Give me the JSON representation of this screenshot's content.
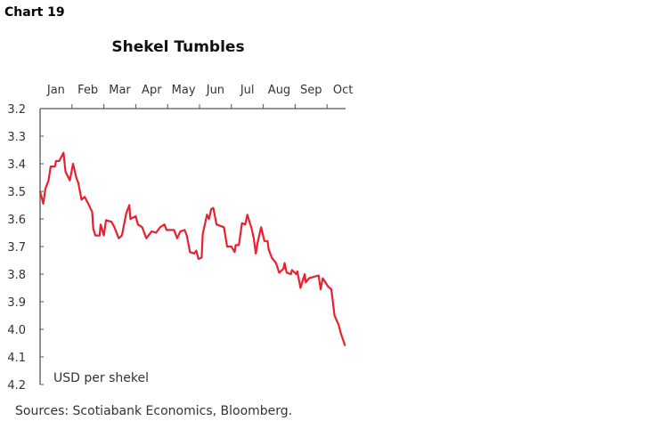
{
  "chart_label": "Chart 19",
  "chart_data": {
    "type": "line",
    "title": "Shekel Tumbles",
    "ylabel": "USD per shekel",
    "source": "Sources: Scotiabank Economics, Bloomberg.",
    "y_inverted": true,
    "ylim": [
      3.2,
      4.2
    ],
    "yticks": [
      "3.2",
      "3.3",
      "3.4",
      "3.5",
      "3.6",
      "3.7",
      "3.8",
      "3.9",
      "4.0",
      "4.1",
      "4.2"
    ],
    "xticks": [
      "Jan",
      "Feb",
      "Mar",
      "Apr",
      "May",
      "Jun",
      "Jul",
      "Aug",
      "Sep",
      "Oct"
    ],
    "xaxis_position": "top",
    "grid": false,
    "color": "#e8202f",
    "series": [
      {
        "points": [
          [
            "01-01",
            3.5
          ],
          [
            "01-04",
            3.545
          ],
          [
            "01-06",
            3.49
          ],
          [
            "01-09",
            3.46
          ],
          [
            "01-11",
            3.41
          ],
          [
            "01-15",
            3.41
          ],
          [
            "01-16",
            3.39
          ],
          [
            "01-19",
            3.39
          ],
          [
            "01-23",
            3.36
          ],
          [
            "01-25",
            3.43
          ],
          [
            "01-29",
            3.46
          ],
          [
            "02-02",
            3.4
          ],
          [
            "02-05",
            3.45
          ],
          [
            "02-07",
            3.47
          ],
          [
            "02-10",
            3.53
          ],
          [
            "02-13",
            3.52
          ],
          [
            "02-17",
            3.55
          ],
          [
            "02-20",
            3.575
          ],
          [
            "02-21",
            3.635
          ],
          [
            "02-23",
            3.66
          ],
          [
            "02-27",
            3.66
          ],
          [
            "02-28",
            3.62
          ],
          [
            "03-01",
            3.66
          ],
          [
            "03-03",
            3.605
          ],
          [
            "03-08",
            3.61
          ],
          [
            "03-11",
            3.63
          ],
          [
            "03-15",
            3.67
          ],
          [
            "03-18",
            3.66
          ],
          [
            "03-22",
            3.58
          ],
          [
            "03-25",
            3.55
          ],
          [
            "03-26",
            3.6
          ],
          [
            "03-31",
            3.59
          ],
          [
            "04-03",
            3.62
          ],
          [
            "04-07",
            3.63
          ],
          [
            "04-11",
            3.67
          ],
          [
            "04-16",
            3.645
          ],
          [
            "04-20",
            3.65
          ],
          [
            "04-24",
            3.63
          ],
          [
            "04-28",
            3.62
          ],
          [
            "04-30",
            3.64
          ],
          [
            "05-07",
            3.64
          ],
          [
            "05-10",
            3.67
          ],
          [
            "05-13",
            3.645
          ],
          [
            "05-17",
            3.64
          ],
          [
            "05-19",
            3.66
          ],
          [
            "05-22",
            3.72
          ],
          [
            "05-26",
            3.725
          ],
          [
            "05-28",
            3.715
          ],
          [
            "05-30",
            3.745
          ],
          [
            "06-03",
            3.74
          ],
          [
            "06-04",
            3.655
          ],
          [
            "06-08",
            3.585
          ],
          [
            "06-10",
            3.6
          ],
          [
            "06-12",
            3.565
          ],
          [
            "06-14",
            3.56
          ],
          [
            "06-17",
            3.62
          ],
          [
            "06-24",
            3.63
          ],
          [
            "06-27",
            3.7
          ],
          [
            "07-01",
            3.7
          ],
          [
            "07-04",
            3.72
          ],
          [
            "07-05",
            3.695
          ],
          [
            "07-08",
            3.695
          ],
          [
            "07-11",
            3.615
          ],
          [
            "07-14",
            3.62
          ],
          [
            "07-16",
            3.585
          ],
          [
            "07-20",
            3.635
          ],
          [
            "07-22",
            3.67
          ],
          [
            "07-24",
            3.725
          ],
          [
            "07-26",
            3.68
          ],
          [
            "07-29",
            3.63
          ],
          [
            "08-02",
            3.68
          ],
          [
            "08-05",
            3.68
          ],
          [
            "08-06",
            3.71
          ],
          [
            "08-09",
            3.74
          ],
          [
            "08-13",
            3.76
          ],
          [
            "08-16",
            3.795
          ],
          [
            "08-20",
            3.78
          ],
          [
            "08-21",
            3.76
          ],
          [
            "08-23",
            3.795
          ],
          [
            "08-27",
            3.8
          ],
          [
            "08-28",
            3.785
          ],
          [
            "09-02",
            3.8
          ],
          [
            "09-03",
            3.79
          ],
          [
            "09-06",
            3.85
          ],
          [
            "09-10",
            3.8
          ],
          [
            "09-11",
            3.83
          ],
          [
            "09-14",
            3.815
          ],
          [
            "09-23",
            3.805
          ],
          [
            "09-25",
            3.855
          ],
          [
            "09-27",
            3.815
          ],
          [
            "10-02",
            3.845
          ],
          [
            "10-05",
            3.855
          ],
          [
            "10-08",
            3.95
          ],
          [
            "10-12",
            3.985
          ],
          [
            "10-14",
            4.015
          ],
          [
            "10-18",
            4.06
          ]
        ]
      }
    ]
  }
}
